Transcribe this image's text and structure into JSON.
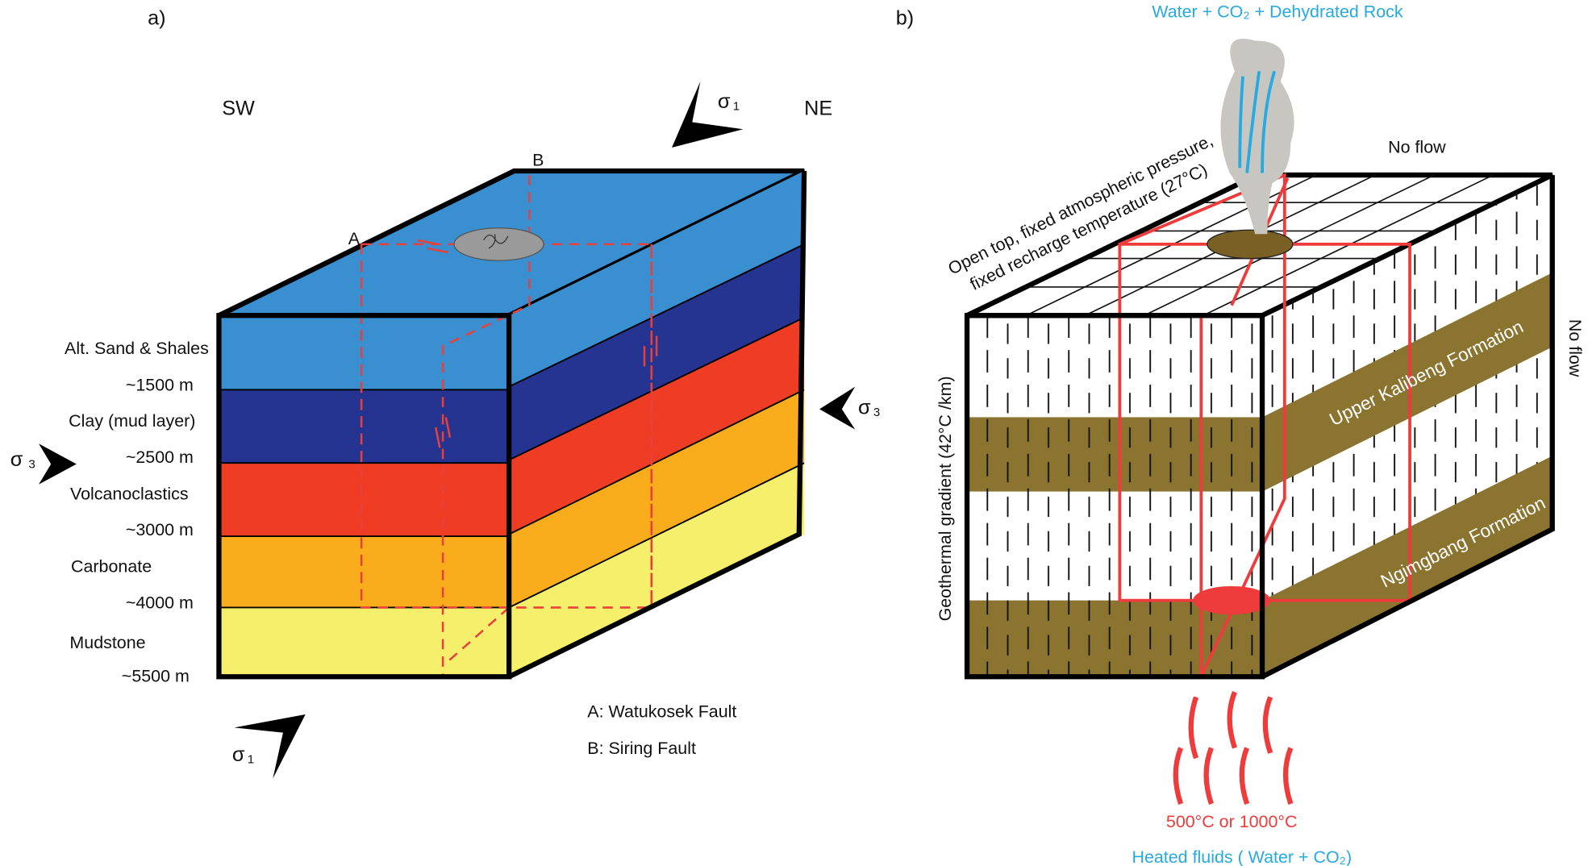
{
  "panel_a": {
    "label": "a)",
    "directions": [
      "SW",
      "NE"
    ],
    "fault_points": [
      "A",
      "B"
    ],
    "layers": [
      {
        "name": "Alt. Sand & Shales",
        "depth": "~1500 m"
      },
      {
        "name": "Clay (mud layer)",
        "depth": "~2500 m"
      },
      {
        "name": "Volcanoclastics",
        "depth": "~3000 m"
      },
      {
        "name": "Carbonate",
        "depth": "~4000 m"
      },
      {
        "name": "Mudstone",
        "depth": "~5500 m"
      }
    ],
    "stress": [
      {
        "symbol": "σ",
        "index": "1"
      },
      {
        "symbol": "σ",
        "index": "3"
      },
      {
        "symbol": "σ",
        "index": "3"
      },
      {
        "symbol": "σ",
        "index": "1"
      }
    ],
    "legend": [
      "A: Watukosek Fault",
      "B: Siring Fault"
    ]
  },
  "panel_b": {
    "label": "b)",
    "top_output": "Water + CO₂ + Dehydrated Rock",
    "top_boundary": [
      "Open top, fixed atmospheric pressure,",
      "fixed recharge temperature (27°C)"
    ],
    "no_flow_top": "No flow",
    "no_flow_side": "No flow",
    "gradient": "Geothermal gradient  (42°C /km)",
    "formations": [
      "Upper Kalibeng Formation",
      "Ngimgbang Formation"
    ],
    "source_temperature": "500°C or 1000°C",
    "source": "Heated fluids ( Water + CO₂)"
  }
}
